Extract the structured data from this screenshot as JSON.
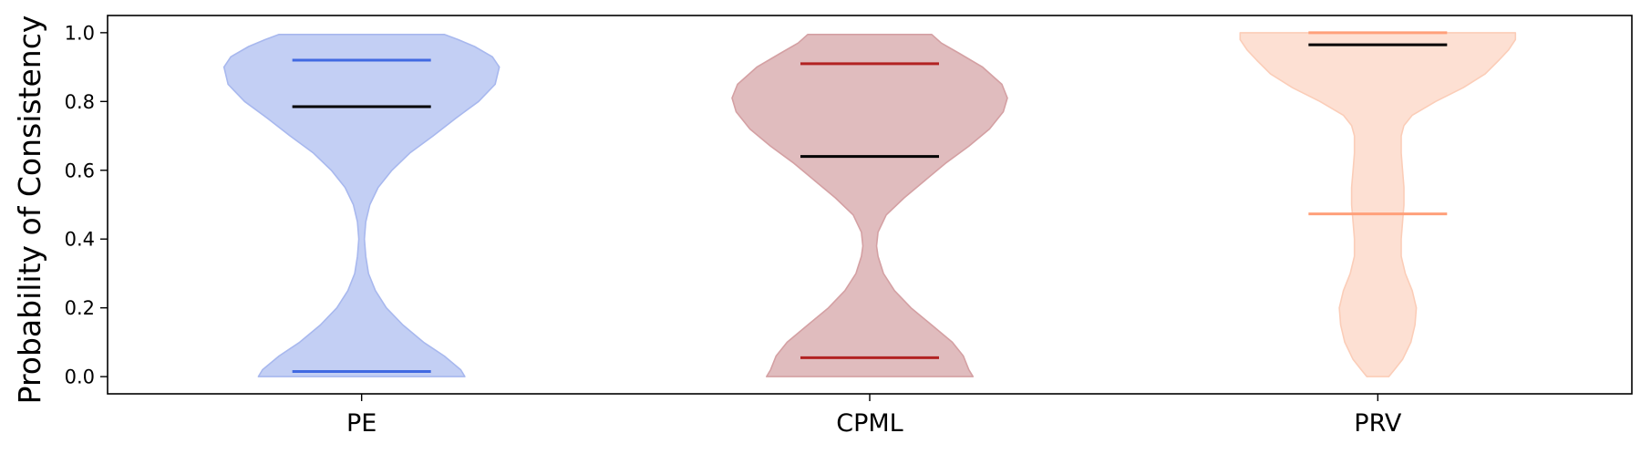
{
  "chart_data": {
    "type": "violin",
    "title": "",
    "xlabel": "",
    "ylabel": "Probability of Consistency",
    "ylim": [
      -0.05,
      1.05
    ],
    "yticks": [
      0.0,
      0.2,
      0.4,
      0.6,
      0.8,
      1.0
    ],
    "ytick_labels": [
      "0.0",
      "0.2",
      "0.4",
      "0.6",
      "0.8",
      "1.0"
    ],
    "grid": false,
    "categories": [
      "PE",
      "CPML",
      "PRV"
    ],
    "series": [
      {
        "category": "PE",
        "fill": "#c3cff4",
        "edge": "#a8b8ee",
        "line_color": "#4169e1",
        "min": 0.015,
        "median": 0.785,
        "max": 0.92,
        "profile": [
          [
            0.0,
            0.75
          ],
          [
            0.02,
            0.72
          ],
          [
            0.06,
            0.6
          ],
          [
            0.1,
            0.45
          ],
          [
            0.15,
            0.3
          ],
          [
            0.2,
            0.18
          ],
          [
            0.25,
            0.1
          ],
          [
            0.3,
            0.05
          ],
          [
            0.35,
            0.03
          ],
          [
            0.4,
            0.02
          ],
          [
            0.45,
            0.03
          ],
          [
            0.5,
            0.06
          ],
          [
            0.55,
            0.12
          ],
          [
            0.6,
            0.22
          ],
          [
            0.65,
            0.35
          ],
          [
            0.7,
            0.52
          ],
          [
            0.75,
            0.68
          ],
          [
            0.8,
            0.85
          ],
          [
            0.85,
            0.97
          ],
          [
            0.9,
            1.0
          ],
          [
            0.93,
            0.95
          ],
          [
            0.96,
            0.82
          ],
          [
            0.98,
            0.7
          ],
          [
            0.995,
            0.6
          ]
        ]
      },
      {
        "category": "CPML",
        "fill": "#e0bcbe",
        "edge": "#d4a0a3",
        "line_color": "#b22222",
        "min": 0.055,
        "median": 0.64,
        "max": 0.91,
        "profile": [
          [
            0.0,
            0.75
          ],
          [
            0.02,
            0.72
          ],
          [
            0.06,
            0.68
          ],
          [
            0.1,
            0.6
          ],
          [
            0.15,
            0.45
          ],
          [
            0.2,
            0.3
          ],
          [
            0.25,
            0.18
          ],
          [
            0.3,
            0.1
          ],
          [
            0.35,
            0.06
          ],
          [
            0.38,
            0.05
          ],
          [
            0.42,
            0.06
          ],
          [
            0.47,
            0.12
          ],
          [
            0.52,
            0.25
          ],
          [
            0.57,
            0.4
          ],
          [
            0.62,
            0.55
          ],
          [
            0.67,
            0.72
          ],
          [
            0.72,
            0.87
          ],
          [
            0.77,
            0.97
          ],
          [
            0.81,
            1.0
          ],
          [
            0.85,
            0.96
          ],
          [
            0.9,
            0.82
          ],
          [
            0.94,
            0.65
          ],
          [
            0.97,
            0.52
          ],
          [
            0.995,
            0.45
          ]
        ]
      },
      {
        "category": "PRV",
        "fill": "#fde0d3",
        "edge": "#fbcdb8",
        "line_color": "#ffa07a",
        "min": 0.473,
        "median": 0.965,
        "max": 1.0,
        "profile": [
          [
            0.0,
            0.08
          ],
          [
            0.02,
            0.12
          ],
          [
            0.05,
            0.18
          ],
          [
            0.1,
            0.24
          ],
          [
            0.15,
            0.27
          ],
          [
            0.2,
            0.28
          ],
          [
            0.25,
            0.25
          ],
          [
            0.3,
            0.2
          ],
          [
            0.35,
            0.17
          ],
          [
            0.4,
            0.17
          ],
          [
            0.45,
            0.18
          ],
          [
            0.5,
            0.19
          ],
          [
            0.55,
            0.19
          ],
          [
            0.6,
            0.18
          ],
          [
            0.65,
            0.17
          ],
          [
            0.7,
            0.17
          ],
          [
            0.73,
            0.19
          ],
          [
            0.76,
            0.25
          ],
          [
            0.8,
            0.42
          ],
          [
            0.84,
            0.62
          ],
          [
            0.88,
            0.78
          ],
          [
            0.92,
            0.88
          ],
          [
            0.95,
            0.95
          ],
          [
            0.98,
            1.0
          ],
          [
            1.0,
            1.0
          ]
        ]
      }
    ]
  }
}
